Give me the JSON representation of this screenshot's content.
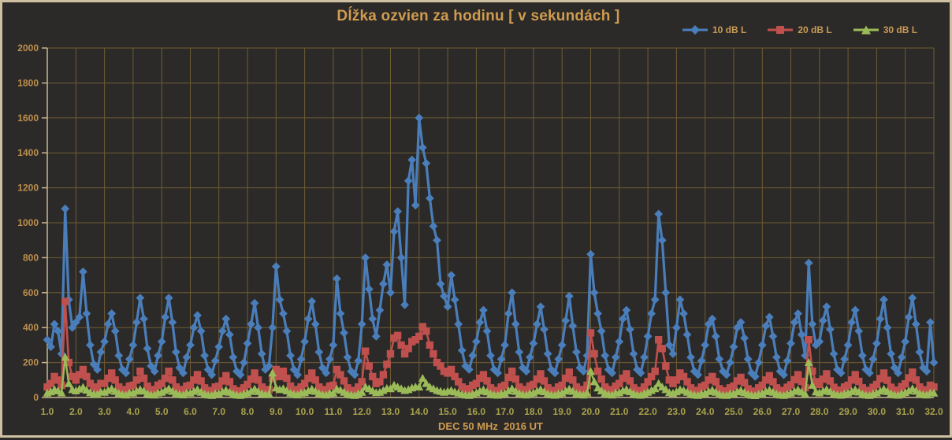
{
  "theme": {
    "background": "#2c2a28",
    "frame": "#cfc0a3",
    "grid": "#6e5c33",
    "axis": "#c8b691",
    "title_color": "#cf9c50",
    "y_tick_color": "#bd8f4d",
    "x_tick_color": "#a8a24b",
    "legend_text_color": "#c89a55"
  },
  "chart_data": {
    "type": "line",
    "title": "Dĺžka ozvien za hodinu [ v sekundách ]",
    "xlabel": "DEC 50 MHz  2016 UT",
    "ylabel": "",
    "xlim": [
      1.0,
      32.0
    ],
    "ylim": [
      0,
      2000
    ],
    "grid": "on",
    "legend_position": "top-right",
    "x_tick_labels": [
      "1.0",
      "2.0",
      "3.0",
      "4.0",
      "5.0",
      "6.0",
      "7.0",
      "8.0",
      "9.0",
      "10.0",
      "11.0",
      "12.0",
      "13.0",
      "14.0",
      "15.0",
      "16.0",
      "17.0",
      "18.0",
      "19.0",
      "20.0",
      "21.0",
      "22.0",
      "23.0",
      "24.0",
      "25.0",
      "26.0",
      "27.0",
      "28.0",
      "29.0",
      "30.0",
      "31.0",
      "32.0"
    ],
    "y_tick_labels": [
      "0",
      "200",
      "400",
      "600",
      "800",
      "1000",
      "1200",
      "1400",
      "1600",
      "1800",
      "2000"
    ],
    "x_sampling": "values are hourly-aggregated echo durations sampled 8 times per day from day 1.0 to 32.0",
    "samples_per_day": 8,
    "x_start": 1.0,
    "notable_peaks": {
      "10dB": [
        {
          "x": 1.6,
          "y": 1080
        },
        {
          "x": 2.25,
          "y": 720
        },
        {
          "x": 9.0,
          "y": 750
        },
        {
          "x": 12.1,
          "y": 800
        },
        {
          "x": 13.25,
          "y": 1065
        },
        {
          "x": 13.8,
          "y": 1360
        },
        {
          "x": 14.0,
          "y": 1600
        },
        {
          "x": 14.1,
          "y": 1430
        },
        {
          "x": 20.0,
          "y": 820
        },
        {
          "x": 22.4,
          "y": 1050
        },
        {
          "x": 27.6,
          "y": 770
        }
      ],
      "20dB": [
        {
          "x": 1.6,
          "y": 550
        },
        {
          "x": 14.1,
          "y": 405
        },
        {
          "x": 20.0,
          "y": 370
        },
        {
          "x": 22.4,
          "y": 330
        },
        {
          "x": 27.6,
          "y": 330
        }
      ],
      "30dB": [
        {
          "x": 1.6,
          "y": 230
        },
        {
          "x": 8.9,
          "y": 140
        },
        {
          "x": 14.1,
          "y": 110
        },
        {
          "x": 20.0,
          "y": 150
        },
        {
          "x": 27.6,
          "y": 200
        }
      ]
    },
    "series": [
      {
        "name": "10 dB L",
        "color": "#4a7ebb",
        "marker": "diamond",
        "values": [
          330,
          290,
          420,
          380,
          250,
          1080,
          560,
          400,
          430,
          460,
          720,
          480,
          300,
          190,
          160,
          260,
          320,
          420,
          480,
          380,
          240,
          160,
          140,
          220,
          300,
          430,
          570,
          450,
          280,
          180,
          150,
          240,
          320,
          460,
          570,
          430,
          260,
          170,
          140,
          230,
          300,
          400,
          470,
          380,
          240,
          160,
          130,
          210,
          290,
          380,
          450,
          360,
          230,
          150,
          130,
          200,
          310,
          420,
          540,
          400,
          250,
          160,
          180,
          400,
          750,
          560,
          480,
          380,
          240,
          160,
          130,
          220,
          320,
          450,
          550,
          420,
          260,
          170,
          140,
          220,
          300,
          680,
          480,
          370,
          230,
          150,
          130,
          210,
          420,
          800,
          620,
          450,
          350,
          500,
          650,
          760,
          600,
          950,
          1065,
          800,
          530,
          1240,
          1360,
          1100,
          1600,
          1430,
          1340,
          1140,
          980,
          900,
          650,
          580,
          520,
          700,
          560,
          420,
          270,
          180,
          160,
          240,
          320,
          430,
          500,
          380,
          240,
          160,
          140,
          220,
          300,
          480,
          600,
          420,
          260,
          170,
          150,
          230,
          310,
          420,
          520,
          390,
          250,
          160,
          140,
          220,
          300,
          440,
          580,
          410,
          260,
          170,
          150,
          240,
          820,
          600,
          480,
          380,
          240,
          160,
          140,
          230,
          320,
          450,
          500,
          390,
          250,
          160,
          140,
          230,
          350,
          480,
          560,
          1050,
          900,
          600,
          300,
          250,
          400,
          560,
          480,
          360,
          230,
          150,
          130,
          210,
          300,
          420,
          450,
          350,
          220,
          150,
          130,
          200,
          290,
          400,
          430,
          340,
          220,
          140,
          120,
          200,
          300,
          410,
          460,
          350,
          230,
          150,
          130,
          210,
          310,
          430,
          480,
          360,
          240,
          770,
          420,
          300,
          320,
          440,
          520,
          390,
          250,
          160,
          140,
          220,
          300,
          430,
          500,
          380,
          240,
          160,
          140,
          220,
          310,
          450,
          560,
          400,
          250,
          170,
          140,
          230,
          320,
          460,
          570,
          420,
          260,
          170,
          150,
          430,
          200
        ]
      },
      {
        "name": "20 dB L",
        "color": "#c0504d",
        "marker": "square",
        "values": [
          60,
          80,
          120,
          100,
          70,
          550,
          200,
          120,
          100,
          130,
          160,
          120,
          80,
          60,
          50,
          80,
          80,
          110,
          140,
          100,
          60,
          45,
          40,
          65,
          70,
          100,
          150,
          110,
          65,
          45,
          40,
          70,
          80,
          110,
          150,
          100,
          60,
          45,
          40,
          65,
          70,
          100,
          130,
          95,
          55,
          40,
          35,
          60,
          65,
          95,
          125,
          90,
          50,
          38,
          35,
          55,
          75,
          105,
          140,
          100,
          60,
          42,
          45,
          110,
          160,
          120,
          150,
          110,
          65,
          45,
          40,
          60,
          80,
          110,
          140,
          100,
          60,
          45,
          40,
          65,
          70,
          160,
          130,
          95,
          55,
          40,
          38,
          60,
          90,
          265,
          180,
          120,
          80,
          90,
          130,
          190,
          250,
          340,
          355,
          300,
          250,
          280,
          320,
          330,
          350,
          405,
          380,
          300,
          250,
          200,
          180,
          150,
          140,
          160,
          120,
          90,
          60,
          50,
          45,
          70,
          80,
          110,
          130,
          95,
          55,
          40,
          38,
          60,
          70,
          115,
          150,
          105,
          60,
          45,
          40,
          65,
          75,
          105,
          135,
          95,
          55,
          40,
          38,
          60,
          70,
          110,
          145,
          100,
          60,
          45,
          40,
          70,
          370,
          250,
          150,
          105,
          60,
          45,
          40,
          65,
          80,
          110,
          135,
          95,
          55,
          40,
          38,
          60,
          90,
          120,
          150,
          330,
          280,
          180,
          100,
          80,
          100,
          140,
          120,
          90,
          55,
          40,
          38,
          60,
          70,
          100,
          120,
          90,
          50,
          38,
          35,
          55,
          65,
          95,
          115,
          85,
          50,
          36,
          34,
          55,
          70,
          100,
          125,
          90,
          55,
          40,
          36,
          58,
          72,
          102,
          130,
          92,
          56,
          330,
          150,
          90,
          75,
          105,
          135,
          95,
          58,
          42,
          38,
          60,
          70,
          100,
          130,
          92,
          55,
          40,
          36,
          58,
          75,
          108,
          140,
          98,
          58,
          42,
          38,
          62,
          78,
          112,
          145,
          100,
          60,
          44,
          40,
          70,
          60
        ]
      },
      {
        "name": "30 dB L",
        "color": "#9bbb59",
        "marker": "triangle",
        "values": [
          25,
          32,
          45,
          38,
          26,
          230,
          80,
          45,
          38,
          48,
          58,
          42,
          28,
          20,
          18,
          30,
          30,
          40,
          50,
          35,
          24,
          16,
          14,
          25,
          26,
          36,
          46,
          36,
          22,
          15,
          14,
          26,
          30,
          40,
          50,
          35,
          24,
          17,
          15,
          25,
          25,
          35,
          45,
          30,
          20,
          14,
          12,
          22,
          22,
          32,
          42,
          30,
          20,
          14,
          12,
          20,
          25,
          35,
          48,
          34,
          22,
          16,
          20,
          140,
          55,
          45,
          50,
          38,
          25,
          18,
          15,
          25,
          28,
          38,
          48,
          35,
          23,
          16,
          14,
          24,
          25,
          48,
          42,
          30,
          20,
          14,
          12,
          22,
          30,
          60,
          50,
          38,
          28,
          30,
          40,
          52,
          50,
          70,
          60,
          50,
          40,
          45,
          55,
          60,
          60,
          110,
          80,
          60,
          50,
          40,
          35,
          30,
          35,
          40,
          32,
          26,
          18,
          14,
          12,
          20,
          26,
          36,
          44,
          32,
          21,
          15,
          13,
          22,
          24,
          38,
          50,
          35,
          23,
          16,
          14,
          24,
          26,
          36,
          46,
          33,
          21,
          15,
          13,
          22,
          25,
          37,
          48,
          35,
          22,
          16,
          14,
          25,
          150,
          90,
          55,
          38,
          24,
          17,
          14,
          25,
          27,
          38,
          46,
          33,
          22,
          15,
          13,
          23,
          30,
          40,
          50,
          80,
          60,
          45,
          28,
          24,
          32,
          45,
          40,
          30,
          20,
          14,
          12,
          21,
          24,
          34,
          42,
          30,
          19,
          13,
          12,
          20,
          22,
          32,
          40,
          28,
          18,
          13,
          11,
          19,
          24,
          34,
          42,
          30,
          20,
          14,
          12,
          20,
          25,
          35,
          44,
          31,
          20,
          200,
          70,
          32,
          26,
          36,
          46,
          33,
          21,
          15,
          13,
          22,
          25,
          34,
          44,
          31,
          20,
          14,
          12,
          21,
          26,
          37,
          48,
          34,
          22,
          15,
          13,
          23,
          28,
          38,
          50,
          36,
          23,
          16,
          14,
          26,
          25
        ]
      }
    ]
  }
}
